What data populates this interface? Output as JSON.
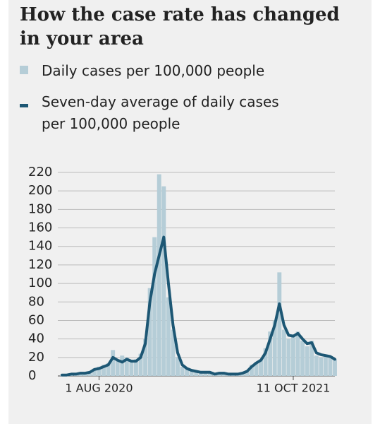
{
  "chart_data": {
    "type": "bar-line",
    "title": "How the case rate has changed in your area",
    "categories": [
      null,
      null,
      null,
      null,
      null,
      null,
      null,
      null,
      "1 AUG 2020",
      null,
      null,
      null,
      null,
      null,
      null,
      null,
      null,
      null,
      null,
      null,
      null,
      null,
      null,
      null,
      null,
      null,
      null,
      null,
      null,
      null,
      null,
      null,
      null,
      null,
      null,
      null,
      null,
      null,
      null,
      null,
      null,
      null,
      null,
      null,
      null,
      null,
      null,
      null,
      null,
      null,
      "11 OCT 2021",
      null,
      null,
      null,
      null,
      null,
      null,
      null,
      null,
      null
    ],
    "series": [
      {
        "name": "Daily cases per 100,000 people",
        "kind": "bar",
        "color": "#b5cdd7",
        "values": [
          1,
          2,
          2,
          3,
          3,
          4,
          5,
          8,
          10,
          12,
          14,
          28,
          18,
          22,
          20,
          15,
          18,
          24,
          40,
          95,
          150,
          218,
          205,
          85,
          50,
          20,
          10,
          7,
          6,
          5,
          4,
          4,
          3,
          2,
          3,
          3,
          2,
          2,
          2,
          3,
          6,
          12,
          15,
          18,
          30,
          48,
          60,
          112,
          50,
          40,
          45,
          48,
          38,
          32,
          38,
          22,
          20,
          22,
          20,
          18
        ]
      },
      {
        "name": "Seven-day average of daily cases per 100,000 people",
        "kind": "line",
        "color": "#1d5774",
        "values": [
          1,
          1,
          2,
          2,
          3,
          3,
          4,
          7,
          8,
          10,
          12,
          20,
          17,
          15,
          18,
          16,
          16,
          20,
          35,
          80,
          110,
          130,
          150,
          100,
          55,
          25,
          12,
          8,
          6,
          5,
          4,
          4,
          4,
          2,
          3,
          3,
          2,
          2,
          2,
          3,
          5,
          10,
          14,
          17,
          25,
          40,
          55,
          78,
          55,
          44,
          43,
          46,
          40,
          35,
          36,
          25,
          23,
          22,
          21,
          18
        ]
      }
    ],
    "ylim": [
      0,
      220
    ],
    "yticks": [
      0,
      20,
      40,
      60,
      80,
      100,
      120,
      140,
      160,
      180,
      200,
      220
    ],
    "grid": true
  }
}
